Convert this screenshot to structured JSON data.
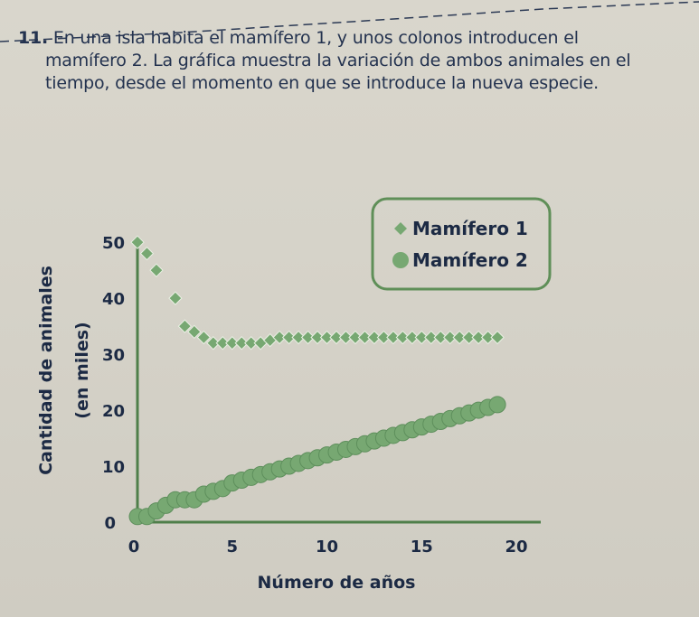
{
  "problem": {
    "number": "11.",
    "lines": [
      "En una isla habita el mamífero 1, y unos colonos introducen el",
      "mamífero 2. La gráfica muestra la variación de ambos animales en el",
      "tiempo, desde el momento en que se introduce la nueva especie."
    ]
  },
  "chart_data": {
    "type": "scatter",
    "xlabel": "Número de años",
    "ylabel_lines": [
      "Cantidad de animales",
      "(en miles)"
    ],
    "x_ticks": [
      0,
      5,
      10,
      15,
      20
    ],
    "y_ticks": [
      0,
      10,
      20,
      30,
      40,
      50
    ],
    "xlim": [
      0,
      21
    ],
    "ylim": [
      0,
      51
    ],
    "legend_position": "top-right",
    "colors": {
      "point": "#77a872",
      "point_dark": "#5e8f5c",
      "axis": "#4f7f4a",
      "box": "#5f8f58",
      "text": "#1c2a44"
    },
    "series": [
      {
        "name": "Mamífero 1",
        "marker": "diamond",
        "x": [
          0,
          0.5,
          1,
          2,
          2.5,
          3,
          3.5,
          4,
          4.5,
          5,
          5.5,
          6,
          6.5,
          7,
          7.5,
          8,
          8.5,
          9,
          9.5,
          10,
          10.5,
          11,
          11.5,
          12,
          12.5,
          13,
          13.5,
          14,
          14.5,
          15,
          15.5,
          16,
          16.5,
          17,
          17.5,
          18,
          18.5,
          19
        ],
        "y": [
          50,
          48,
          45,
          40,
          35,
          34,
          33,
          32,
          32,
          32,
          32,
          32,
          32,
          32.5,
          33,
          33,
          33,
          33,
          33,
          33,
          33,
          33,
          33,
          33,
          33,
          33,
          33,
          33,
          33,
          33,
          33,
          33,
          33,
          33,
          33,
          33,
          33,
          33
        ]
      },
      {
        "name": "Mamífero 2",
        "marker": "circle",
        "x": [
          0,
          0.5,
          1,
          1.5,
          2,
          2.5,
          3,
          3.5,
          4,
          4.5,
          5,
          5.5,
          6,
          6.5,
          7,
          7.5,
          8,
          8.5,
          9,
          9.5,
          10,
          10.5,
          11,
          11.5,
          12,
          12.5,
          13,
          13.5,
          14,
          14.5,
          15,
          15.5,
          16,
          16.5,
          17,
          17.5,
          18,
          18.5,
          19
        ],
        "y": [
          1,
          1,
          2,
          3,
          4,
          4,
          4,
          5,
          5.5,
          6,
          7,
          7.5,
          8,
          8.5,
          9,
          9.5,
          10,
          10.5,
          11,
          11.5,
          12,
          12.5,
          13,
          13.5,
          14,
          14.5,
          15,
          15.5,
          16,
          16.5,
          17,
          17.5,
          18,
          18.5,
          19,
          19.5,
          20,
          20.5,
          21
        ]
      }
    ]
  }
}
